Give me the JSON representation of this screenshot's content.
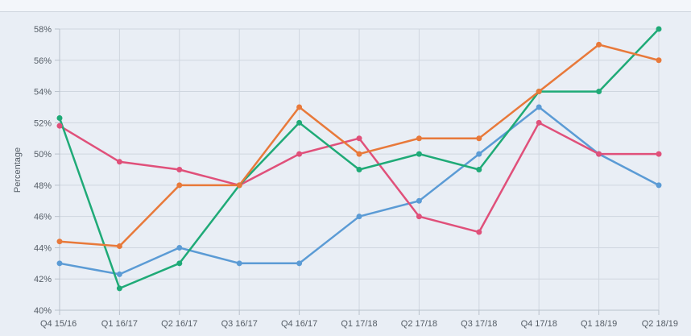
{
  "chart_data": {
    "type": "line",
    "title": "",
    "xlabel": "",
    "ylabel": "Percentage",
    "categories": [
      "Q4 15/16",
      "Q1 16/17",
      "Q2 16/17",
      "Q3 16/17",
      "Q4 16/17",
      "Q1 17/18",
      "Q2 17/18",
      "Q3 17/18",
      "Q4 17/18",
      "Q1 18/19",
      "Q2 18/19"
    ],
    "ylim": [
      40,
      58
    ],
    "yticks": [
      40,
      42,
      44,
      46,
      48,
      50,
      52,
      54,
      56,
      58
    ],
    "ytick_labels": [
      "40%",
      "42%",
      "44%",
      "46%",
      "48%",
      "50%",
      "52%",
      "54%",
      "56%",
      "58%"
    ],
    "grid": true,
    "legend": "none",
    "series": [
      {
        "color": "#5b9bd5",
        "values": [
          43,
          42.3,
          44,
          43,
          43,
          46,
          47,
          50,
          53,
          50,
          48
        ]
      },
      {
        "color": "#e0507a",
        "values": [
          51.8,
          49.5,
          49,
          48,
          50,
          51,
          46,
          45,
          52,
          50,
          50
        ]
      },
      {
        "color": "#1faa77",
        "values": [
          52.3,
          41.4,
          43,
          48,
          52,
          49,
          50,
          49,
          54,
          54,
          58
        ]
      },
      {
        "color": "#e8793a",
        "values": [
          44.4,
          44.1,
          48,
          48,
          53,
          50,
          51,
          51,
          54,
          57,
          56
        ]
      }
    ]
  }
}
